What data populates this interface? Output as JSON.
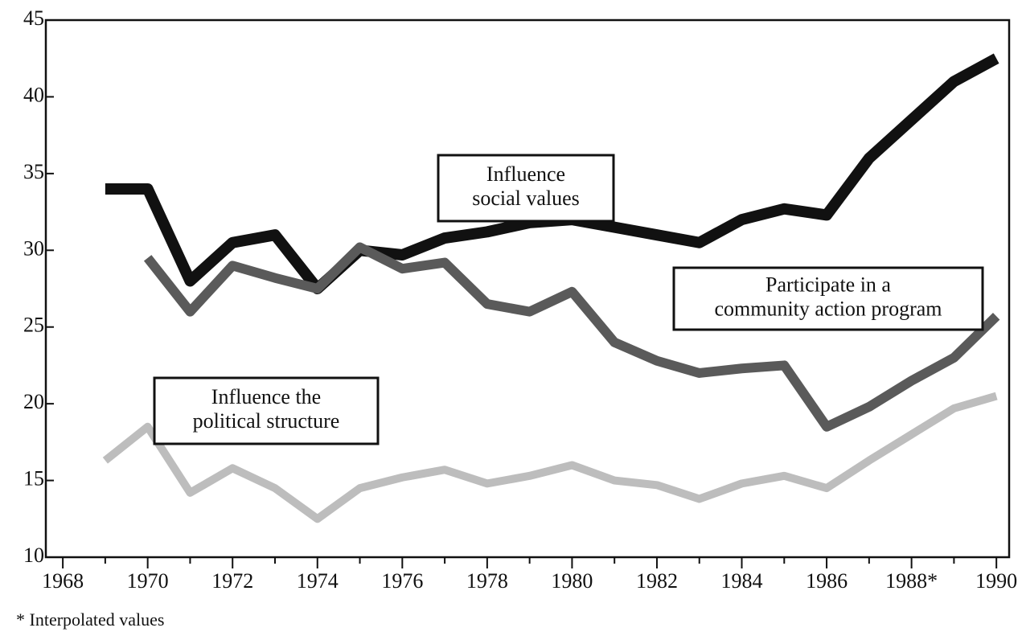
{
  "chart_data": {
    "type": "line",
    "x": [
      1969,
      1970,
      1971,
      1972,
      1973,
      1974,
      1975,
      1976,
      1977,
      1978,
      1979,
      1980,
      1981,
      1982,
      1983,
      1984,
      1985,
      1986,
      1987,
      1988,
      1989,
      1990
    ],
    "series": [
      {
        "label": [
          "Influence",
          "social  values"
        ],
        "color": "#111111",
        "width": 14,
        "values": [
          34,
          34,
          28,
          30.5,
          31,
          27.5,
          30,
          29.7,
          30.8,
          31.2,
          31.8,
          32,
          31.5,
          31,
          30.5,
          32,
          32.7,
          32.3,
          36,
          38.5,
          41,
          42.5
        ]
      },
      {
        "label": [
          "Participate in a",
          "community action program"
        ],
        "color": "#5a5a5a",
        "width": 12,
        "values": [
          null,
          29.5,
          26,
          29,
          28.2,
          27.5,
          30.2,
          28.8,
          29.2,
          26.5,
          26,
          27.3,
          24,
          22.8,
          22,
          22.3,
          22.5,
          18.5,
          19.8,
          21.5,
          23,
          25.7
        ]
      },
      {
        "label": [
          "Influence the",
          "political structure"
        ],
        "color": "#bdbdbd",
        "width": 10,
        "values": [
          16.3,
          18.5,
          14.2,
          15.8,
          14.5,
          12.5,
          14.5,
          15.2,
          15.7,
          14.8,
          15.3,
          16,
          15,
          14.7,
          13.8,
          14.8,
          15.3,
          14.5,
          16.3,
          18,
          19.7,
          20.5
        ]
      }
    ],
    "xlim": [
      1967.6,
      1990.3
    ],
    "xticks": [
      1968,
      1970,
      1972,
      1974,
      1976,
      1978,
      1980,
      1982,
      1984,
      1986,
      {
        "value": 1988,
        "label": "1988*"
      },
      1990
    ],
    "ylim": [
      10,
      45
    ],
    "yticks": [
      10,
      15,
      20,
      25,
      30,
      35,
      40,
      45
    ],
    "footnote": "* Interpolated values"
  }
}
